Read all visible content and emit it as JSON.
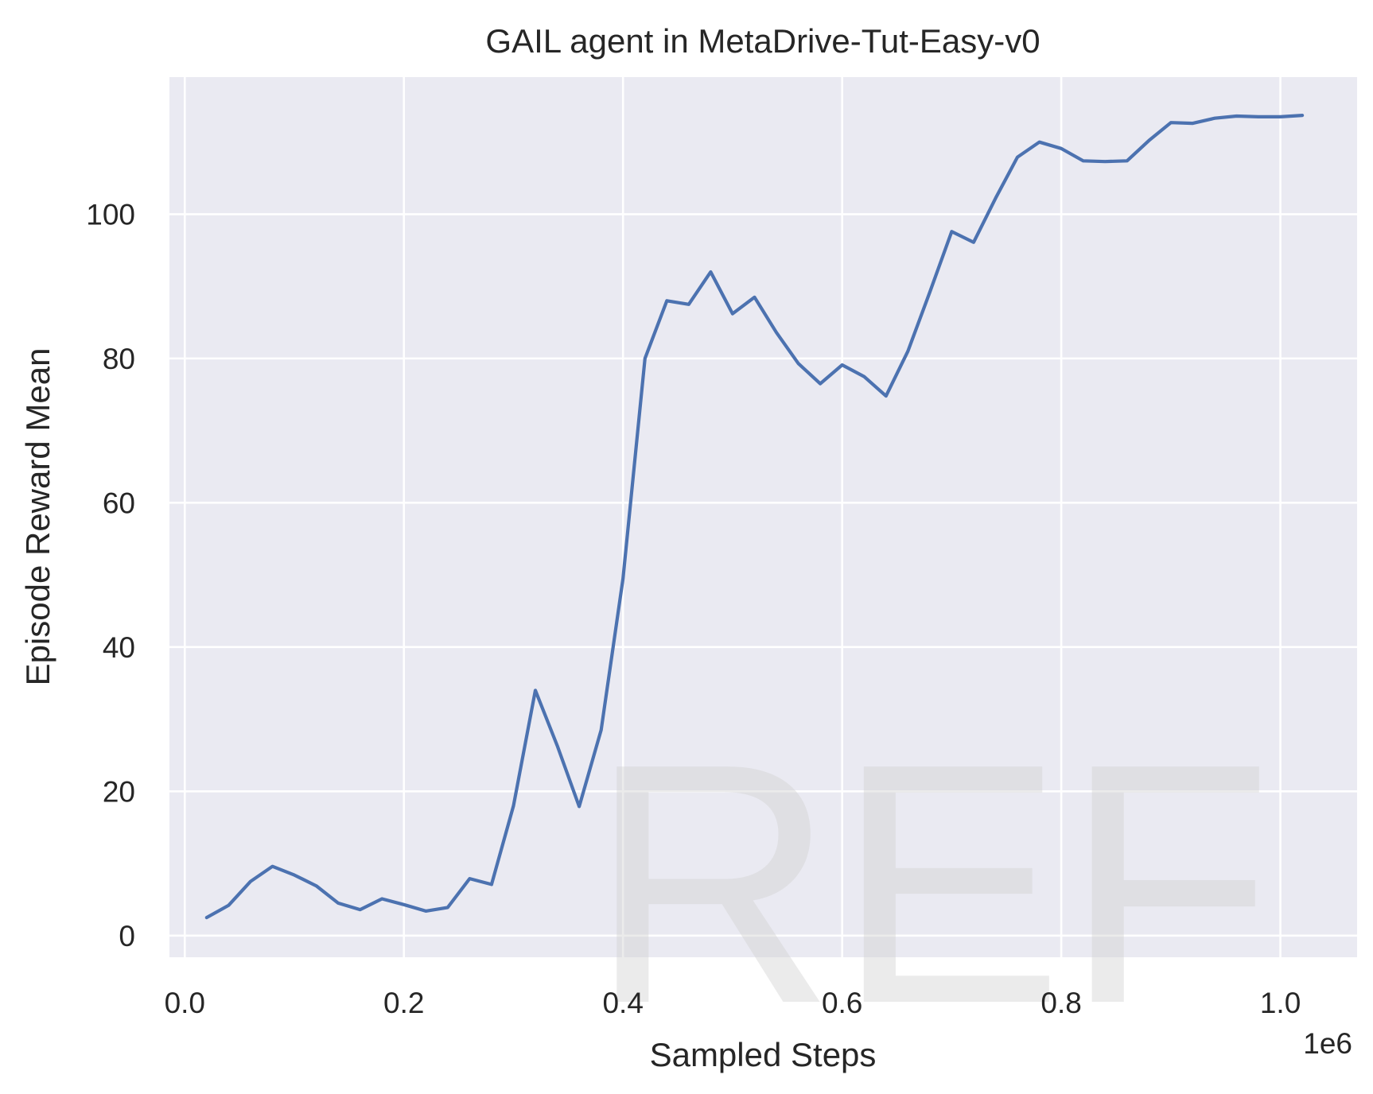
{
  "chart_data": {
    "type": "line",
    "title": "GAIL agent in MetaDrive-Tut-Easy-v0",
    "xlabel": "Sampled Steps",
    "ylabel": "Episode Reward Mean",
    "x_offset_label": "1e6",
    "xlim": [
      -0.014,
      1.07
    ],
    "ylim": [
      -3,
      119
    ],
    "x_ticks": [
      0.0,
      0.2,
      0.4,
      0.6,
      0.8,
      1.0
    ],
    "x_tick_labels": [
      "0.0",
      "0.2",
      "0.4",
      "0.6",
      "0.8",
      "1.0"
    ],
    "y_ticks": [
      0,
      20,
      40,
      60,
      80,
      100
    ],
    "y_tick_labels": [
      "0",
      "20",
      "40",
      "60",
      "80",
      "100"
    ],
    "grid": true,
    "legend": "none",
    "series": [
      {
        "color": "#4c72b0",
        "x": [
          0.02,
          0.04,
          0.06,
          0.08,
          0.1,
          0.12,
          0.14,
          0.16,
          0.18,
          0.2,
          0.22,
          0.24,
          0.26,
          0.28,
          0.3,
          0.32,
          0.34,
          0.36,
          0.38,
          0.4,
          0.42,
          0.44,
          0.46,
          0.48,
          0.5,
          0.52,
          0.54,
          0.56,
          0.58,
          0.6,
          0.62,
          0.64,
          0.66,
          0.68,
          0.7,
          0.72,
          0.74,
          0.76,
          0.78,
          0.8,
          0.82,
          0.84,
          0.86,
          0.88,
          0.9,
          0.92,
          0.94,
          0.96,
          0.98,
          1.0,
          1.02
        ],
        "y": [
          2.5,
          4.2,
          7.5,
          9.6,
          8.4,
          6.9,
          4.5,
          3.6,
          5.1,
          4.3,
          3.4,
          3.9,
          7.9,
          7.1,
          18.0,
          34.0,
          26.3,
          17.9,
          28.5,
          49.5,
          80.0,
          88.0,
          87.5,
          92.0,
          86.2,
          88.5,
          83.6,
          79.3,
          76.5,
          79.1,
          77.5,
          74.8,
          81.0,
          89.2,
          97.6,
          96.1,
          102.2,
          107.9,
          110.0,
          109.1,
          107.4,
          107.3,
          107.4,
          110.2,
          112.7,
          112.6,
          113.3,
          113.6,
          113.5,
          113.5,
          113.7
        ]
      }
    ]
  },
  "watermark": "REF"
}
